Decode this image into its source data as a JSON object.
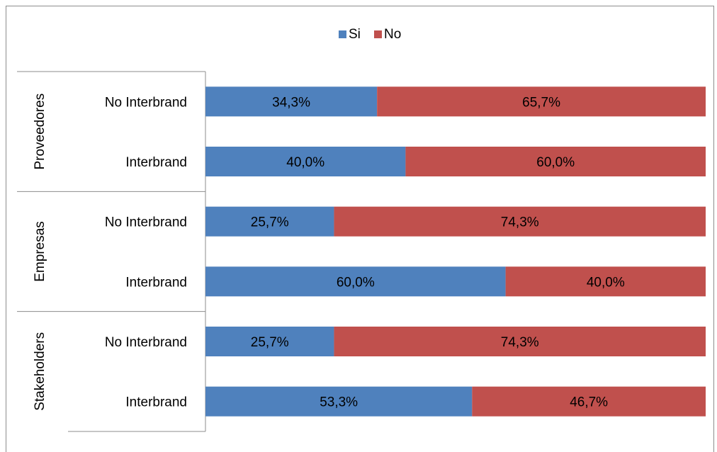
{
  "chart_data": {
    "type": "bar",
    "orientation": "horizontal",
    "stacked": "percent",
    "legend": {
      "placement": "top-center"
    },
    "series": [
      {
        "name": "Si",
        "color": "#4F81BD"
      },
      {
        "name": "No",
        "color": "#C0504D"
      }
    ],
    "groups": [
      {
        "label": "Proveedores",
        "rows": [
          {
            "label": "No Interbrand",
            "values": [
              34.3,
              65.7
            ],
            "labels": [
              "34,3%",
              "65,7%"
            ]
          },
          {
            "label": "Interbrand",
            "values": [
              40.0,
              60.0
            ],
            "labels": [
              "40,0%",
              "60,0%"
            ]
          }
        ]
      },
      {
        "label": "Empresas",
        "rows": [
          {
            "label": "No Interbrand",
            "values": [
              25.7,
              74.3
            ],
            "labels": [
              "25,7%",
              "74,3%"
            ]
          },
          {
            "label": "Interbrand",
            "values": [
              60.0,
              40.0
            ],
            "labels": [
              "60,0%",
              "40,0%"
            ]
          }
        ]
      },
      {
        "label": "Stakeholders",
        "rows": [
          {
            "label": "No Interbrand",
            "values": [
              25.7,
              74.3
            ],
            "labels": [
              "25,7%",
              "74,3%"
            ]
          },
          {
            "label": "Interbrand",
            "values": [
              53.3,
              46.7
            ],
            "labels": [
              "53,3%",
              "46,7%"
            ]
          }
        ]
      }
    ]
  }
}
